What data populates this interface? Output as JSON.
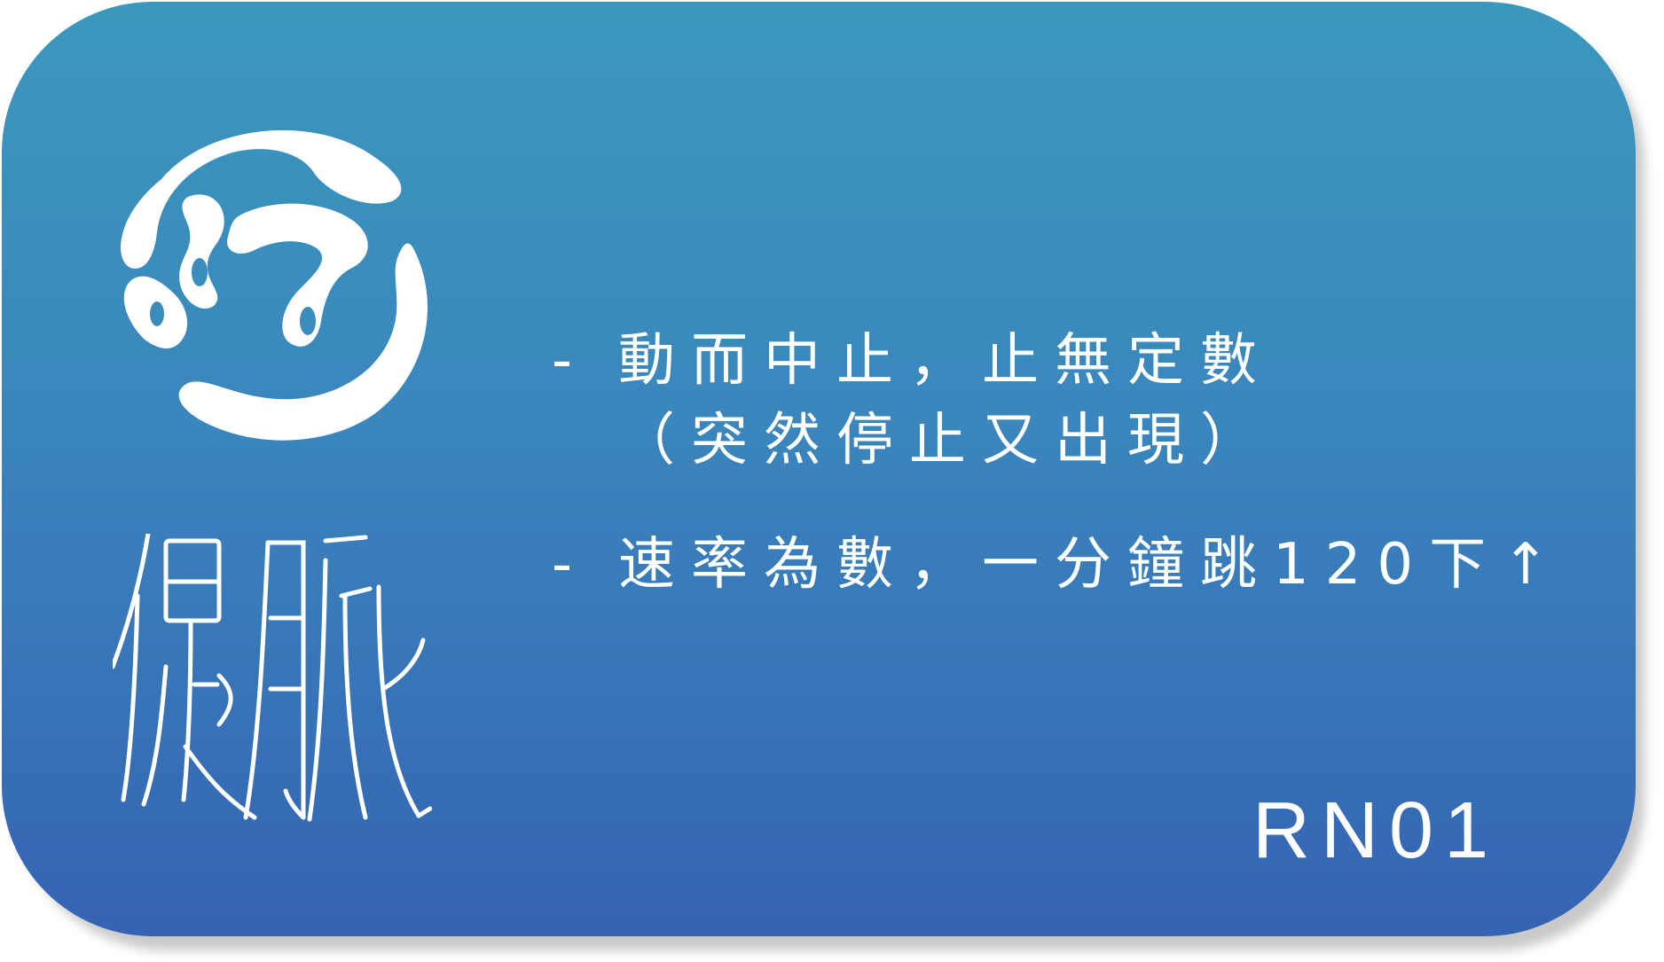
{
  "card": {
    "title": "促脈",
    "code": "RN01",
    "logo_icon": "triple-swirl-circle-logo",
    "colors": {
      "gradient_top": "#3b98bd",
      "gradient_bottom": "#3563b3",
      "text": "#ffffff"
    }
  },
  "items": [
    {
      "bullet": "-",
      "line1": "動而中止，止無定數",
      "line2": "（突然停止又出現）"
    },
    {
      "bullet": "-",
      "line1": "速率為數，一分鐘跳120下↑"
    }
  ]
}
